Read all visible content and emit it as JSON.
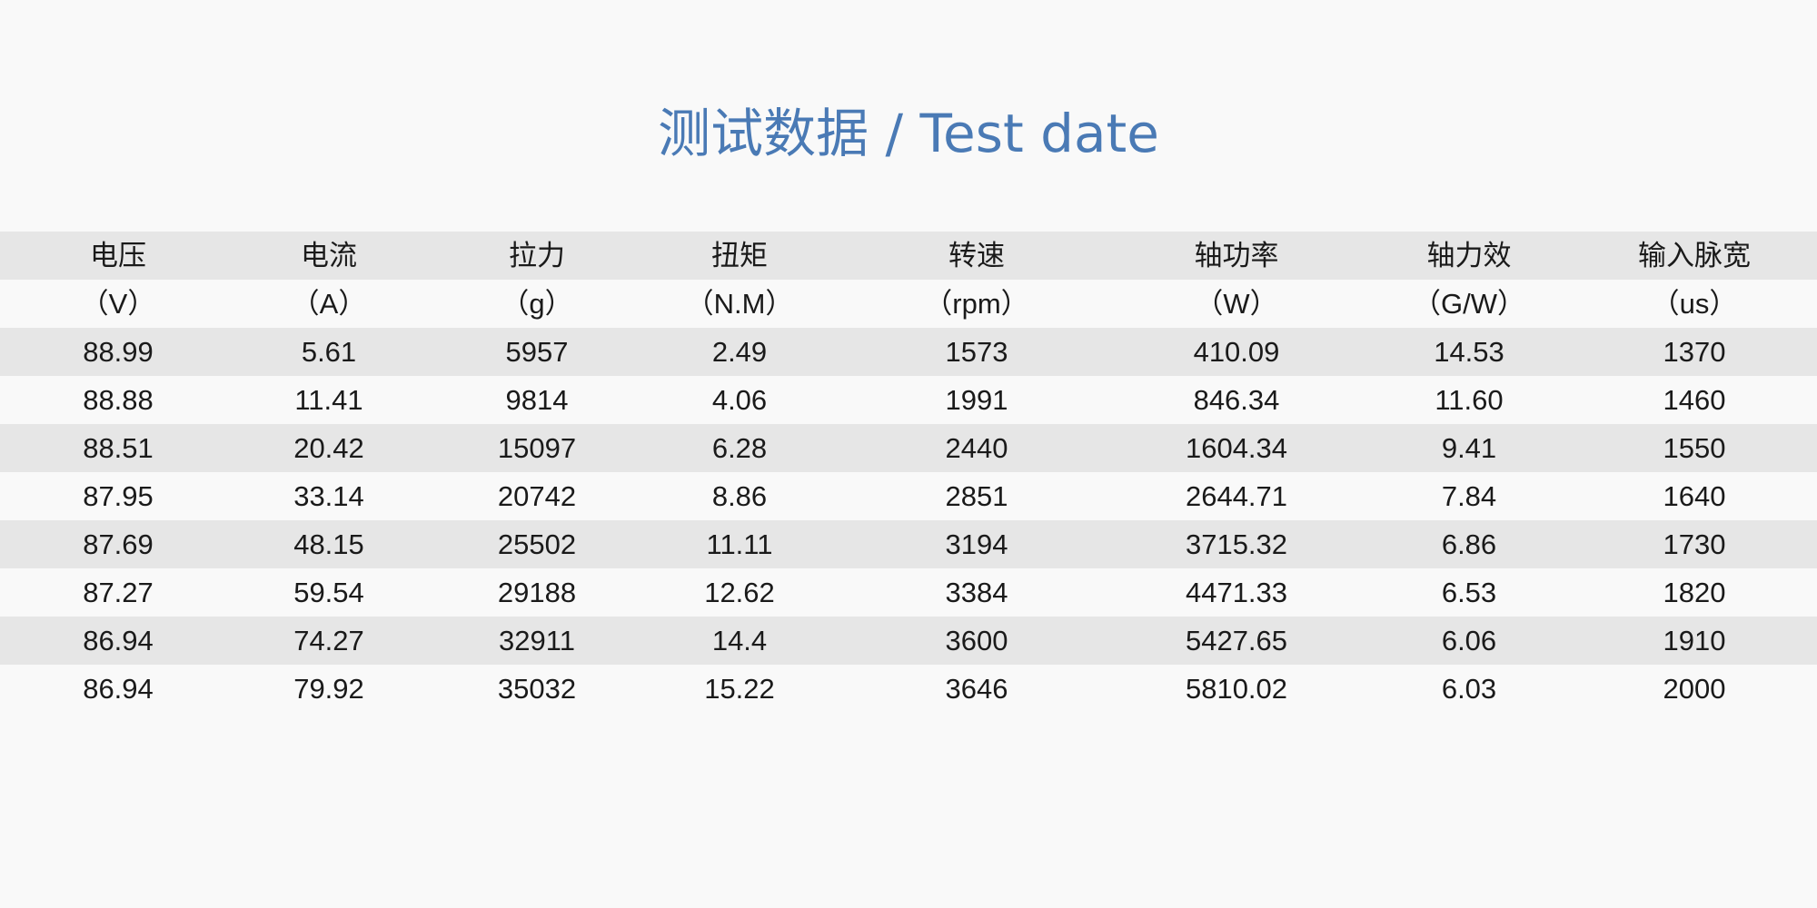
{
  "title": "测试数据 / Test date",
  "headers": [
    "电压",
    "电流",
    "拉力",
    "扭矩",
    "转速",
    "轴功率",
    "轴力效",
    "输入脉宽"
  ],
  "units": [
    "（V）",
    "（A）",
    "（g）",
    "（N.M）",
    "（rpm）",
    "（W）",
    "（G/W）",
    "（us）"
  ],
  "rows": [
    [
      "88.99",
      "5.61",
      "5957",
      "2.49",
      "1573",
      "410.09",
      "14.53",
      "1370"
    ],
    [
      "88.88",
      "11.41",
      "9814",
      "4.06",
      "1991",
      "846.34",
      "11.60",
      "1460"
    ],
    [
      "88.51",
      "20.42",
      "15097",
      "6.28",
      "2440",
      "1604.34",
      "9.41",
      "1550"
    ],
    [
      "87.95",
      "33.14",
      "20742",
      "8.86",
      "2851",
      "2644.71",
      "7.84",
      "1640"
    ],
    [
      "87.69",
      "48.15",
      "25502",
      "11.11",
      "3194",
      "3715.32",
      "6.86",
      "1730"
    ],
    [
      "87.27",
      "59.54",
      "29188",
      "12.62",
      "3384",
      "4471.33",
      "6.53",
      "1820"
    ],
    [
      "86.94",
      "74.27",
      "32911",
      "14.4",
      "3600",
      "5427.65",
      "6.06",
      "1910"
    ],
    [
      "86.94",
      "79.92",
      "35032",
      "15.22",
      "3646",
      "5810.02",
      "6.03",
      "2000"
    ]
  ],
  "colors": {
    "title": "#4a7ab5",
    "stripe": "#e6e6e6",
    "background": "#f9f9f9"
  }
}
